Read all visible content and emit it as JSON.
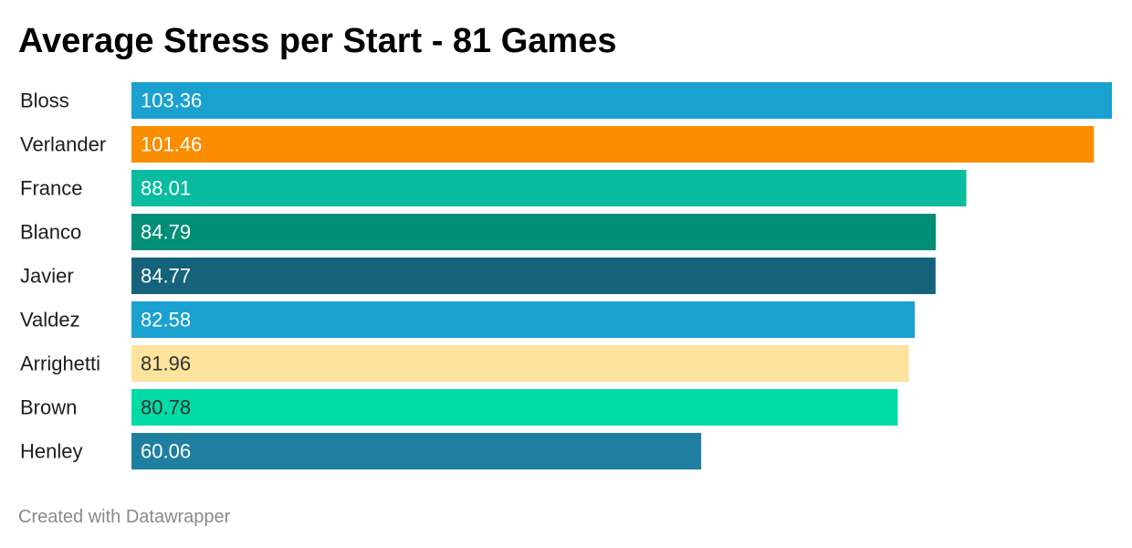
{
  "header": {
    "title": "Average Stress per Start - 81 Games"
  },
  "footer": {
    "credit": "Created with Datawrapper"
  },
  "chart_data": {
    "type": "bar",
    "orientation": "horizontal",
    "title": "Average Stress per Start - 81 Games",
    "categories": [
      "Bloss",
      "Verlander",
      "France",
      "Blanco",
      "Javier",
      "Valdez",
      "Arrighetti",
      "Brown",
      "Henley"
    ],
    "values": [
      103.36,
      101.46,
      88.01,
      84.79,
      84.77,
      82.58,
      81.96,
      80.78,
      60.06
    ],
    "value_labels": [
      "103.36",
      "101.46",
      "88.01",
      "84.79",
      "84.77",
      "82.58",
      "81.96",
      "80.78",
      "60.06"
    ],
    "colors": [
      "#1ba1d0",
      "#fa8d00",
      "#0abc9f",
      "#008e76",
      "#15627b",
      "#1ba1d0",
      "#fee39d",
      "#01dba6",
      "#1e7fa0"
    ],
    "label_colors": [
      "#ffffff",
      "#ffffff",
      "#ffffff",
      "#ffffff",
      "#ffffff",
      "#ffffff",
      "#333333",
      "#333333",
      "#ffffff"
    ],
    "xlim": [
      0,
      103.36
    ],
    "grid": false,
    "legend": "none"
  }
}
